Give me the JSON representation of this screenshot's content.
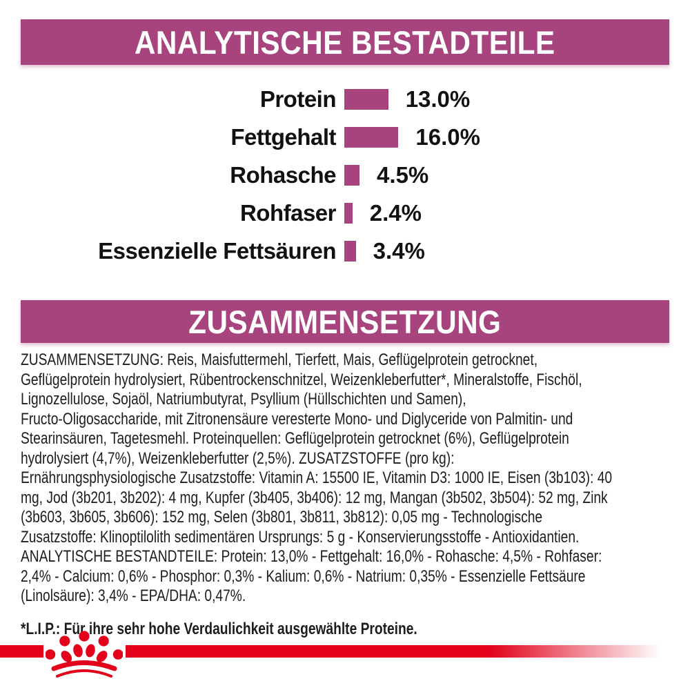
{
  "colors": {
    "accent_magenta": "#a7447d",
    "brand_red": "#e2001a",
    "text": "#1d1d1b",
    "background": "#ffffff"
  },
  "sections": {
    "analytical": {
      "title": "ANALYTISCHE BESTADTEILE"
    },
    "composition": {
      "title": "ZUSAMMENSETZUNG"
    }
  },
  "chart_data": {
    "type": "bar",
    "orientation": "horizontal",
    "title": "ANALYTISCHE BESTADTEILE",
    "categories": [
      "Protein",
      "Fettgehalt",
      "Rohasche",
      "Rohfaser",
      "Essenzielle Fettsäuren"
    ],
    "values": [
      13.0,
      16.0,
      4.5,
      2.4,
      3.4
    ],
    "value_labels": [
      "13.0%",
      "16.0%",
      "4.5%",
      "2.4%",
      "3.4%"
    ],
    "unit": "%",
    "xlim": [
      0,
      16
    ],
    "grid": false,
    "legend": false,
    "bar_color": "#a7447d"
  },
  "composition_lines": [
    "ZUSAMMENSETZUNG: Reis, Maisfuttermehl, Tierfett, Mais, Geflügelprotein getrocknet,",
    "Geflügelprotein hydrolysiert, Rübentrockenschnitzel, Weizenkleberfutter*, Mineralstoffe, Fischöl,",
    "Lignozellulose, Sojaöl, Natriumbutyrat, Psyllium (Hüllschichten und Samen),",
    "Fructo-Oligosaccharide, mit Zitronensäure veresterte Mono- und Diglyceride von Palmitin- und",
    "Stearinsäuren, Tagetesmehl. Proteinquellen: Geflügelprotein getrocknet (6%), Geflügelprotein",
    "hydrolysiert (4,7%), Weizenkleberfutter (2,5%). ZUSATZSTOFFE (pro kg):",
    "Ernährungsphysiologische Zusatzstoffe: Vitamin A: 15500 IE, Vitamin D3: 1000 IE, Eisen (3b103): 40",
    "mg, Jod (3b201, 3b202): 4 mg, Kupfer (3b405, 3b406): 12 mg, Mangan (3b502, 3b504): 52 mg, Zink",
    "(3b603, 3b605, 3b606): 152 mg, Selen (3b801, 3b811, 3b812): 0,05 mg - Technologische",
    "Zusatzstoffe: Klinoptilolith sedimentären Ursprungs: 5 g - Konservierungsstoffe - Antioxidantien.",
    "ANALYTISCHE BESTANDTEILE: Protein: 13,0% - Fettgehalt: 16,0% - Rohasche: 4,5% - Rohfaser:",
    "2,4% - Calcium: 0,6% - Phosphor: 0,3% - Kalium: 0,6% - Natrium: 0,35% - Essenzielle Fettsäure",
    "(Linolsäure): 3,4% - EPA/DHA: 0,47%."
  ],
  "footnote": "*L.I.P.: Für ihre sehr hohe Verdaulichkeit ausgewählte Proteine.",
  "logo": {
    "icon": "royal-canin-crown-icon",
    "color": "#e2001a"
  }
}
